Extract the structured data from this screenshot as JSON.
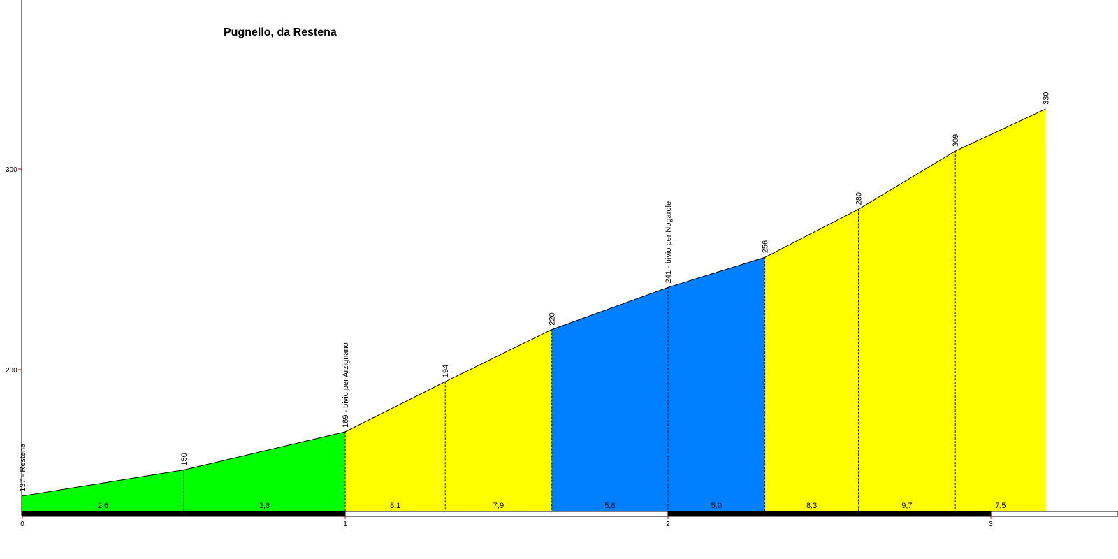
{
  "chart_data": {
    "type": "area",
    "title": "Pugnello, da Restena",
    "xlabel": "",
    "ylabel": "",
    "xlim": [
      0,
      3.32
    ],
    "ylim": [
      130,
      384
    ],
    "x_ticks": [
      "0",
      "1",
      "2",
      "3"
    ],
    "y_ticks": [
      "200",
      "300"
    ],
    "points": [
      {
        "x": 0.0,
        "y": 137,
        "label": "137 - Restena"
      },
      {
        "x": 0.5,
        "y": 150,
        "label": "150"
      },
      {
        "x": 1.0,
        "y": 169,
        "label": "169 - bivio per Arzignano"
      },
      {
        "x": 1.31,
        "y": 194,
        "label": "194"
      },
      {
        "x": 1.64,
        "y": 220,
        "label": "220"
      },
      {
        "x": 2.0,
        "y": 241,
        "label": "241 - bivio per Nogarole"
      },
      {
        "x": 2.3,
        "y": 256,
        "label": "256"
      },
      {
        "x": 2.59,
        "y": 280,
        "label": "280"
      },
      {
        "x": 2.89,
        "y": 309,
        "label": "309"
      },
      {
        "x": 3.17,
        "y": 330,
        "label": "330"
      }
    ],
    "segments": [
      {
        "from": 0.0,
        "to": 0.5,
        "gradient": "2,6",
        "color": "#00ff00"
      },
      {
        "from": 0.5,
        "to": 1.0,
        "gradient": "3,8",
        "color": "#00ff00"
      },
      {
        "from": 1.0,
        "to": 1.31,
        "gradient": "8,1",
        "color": "#ffff00"
      },
      {
        "from": 1.31,
        "to": 1.64,
        "gradient": "7,9",
        "color": "#ffff00"
      },
      {
        "from": 1.64,
        "to": 2.0,
        "gradient": "5,8",
        "color": "#0080ff"
      },
      {
        "from": 2.0,
        "to": 2.3,
        "gradient": "5,0",
        "color": "#0080ff"
      },
      {
        "from": 2.3,
        "to": 2.59,
        "gradient": "8,3",
        "color": "#ffff00"
      },
      {
        "from": 2.59,
        "to": 2.89,
        "gradient": "9,7",
        "color": "#ffff00"
      },
      {
        "from": 2.89,
        "to": 3.17,
        "gradient": "7,5",
        "color": "#ffff00"
      }
    ],
    "grid": false,
    "legend": "none"
  }
}
